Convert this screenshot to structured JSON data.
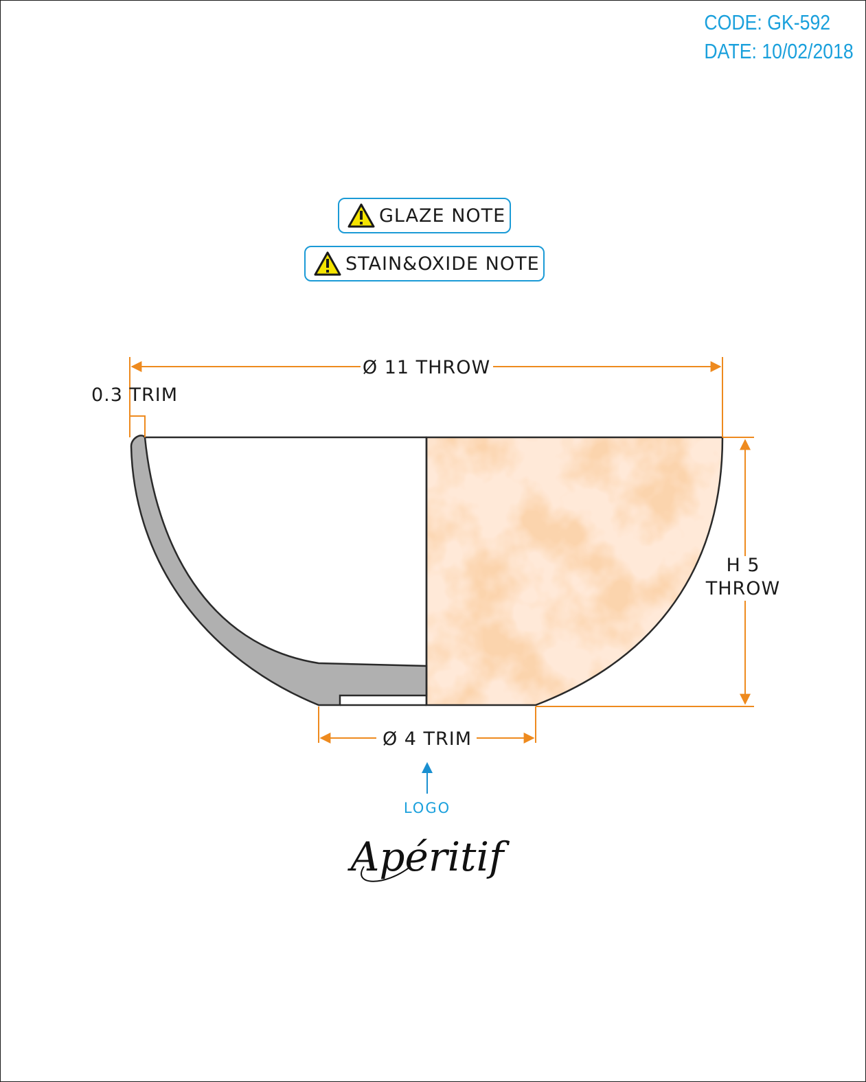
{
  "header": {
    "code": "CODE: GK-592",
    "date": "DATE: 10/02/2018"
  },
  "notes": {
    "glaze": "GLAZE NOTE",
    "stain_oxide": "STAIN&OXIDE NOTE"
  },
  "dimensions": {
    "diameter_top": "Ø 11 THROW",
    "trim_thickness": "0.3 TRIM",
    "height_line1": "H 5",
    "height_line2": "THROW",
    "diameter_foot": "Ø 4 TRIM"
  },
  "logo": {
    "label": "LOGO",
    "brand": "Apéritif"
  },
  "colors": {
    "accent_blue": "#1aa0dc",
    "dimension_orange": "#ee8a1e",
    "glaze_orange": "#f8b98a",
    "section_gray": "#b0b0b0"
  },
  "icons": {
    "warning": "warning-triangle-icon",
    "arrow": "arrow-up-icon"
  }
}
